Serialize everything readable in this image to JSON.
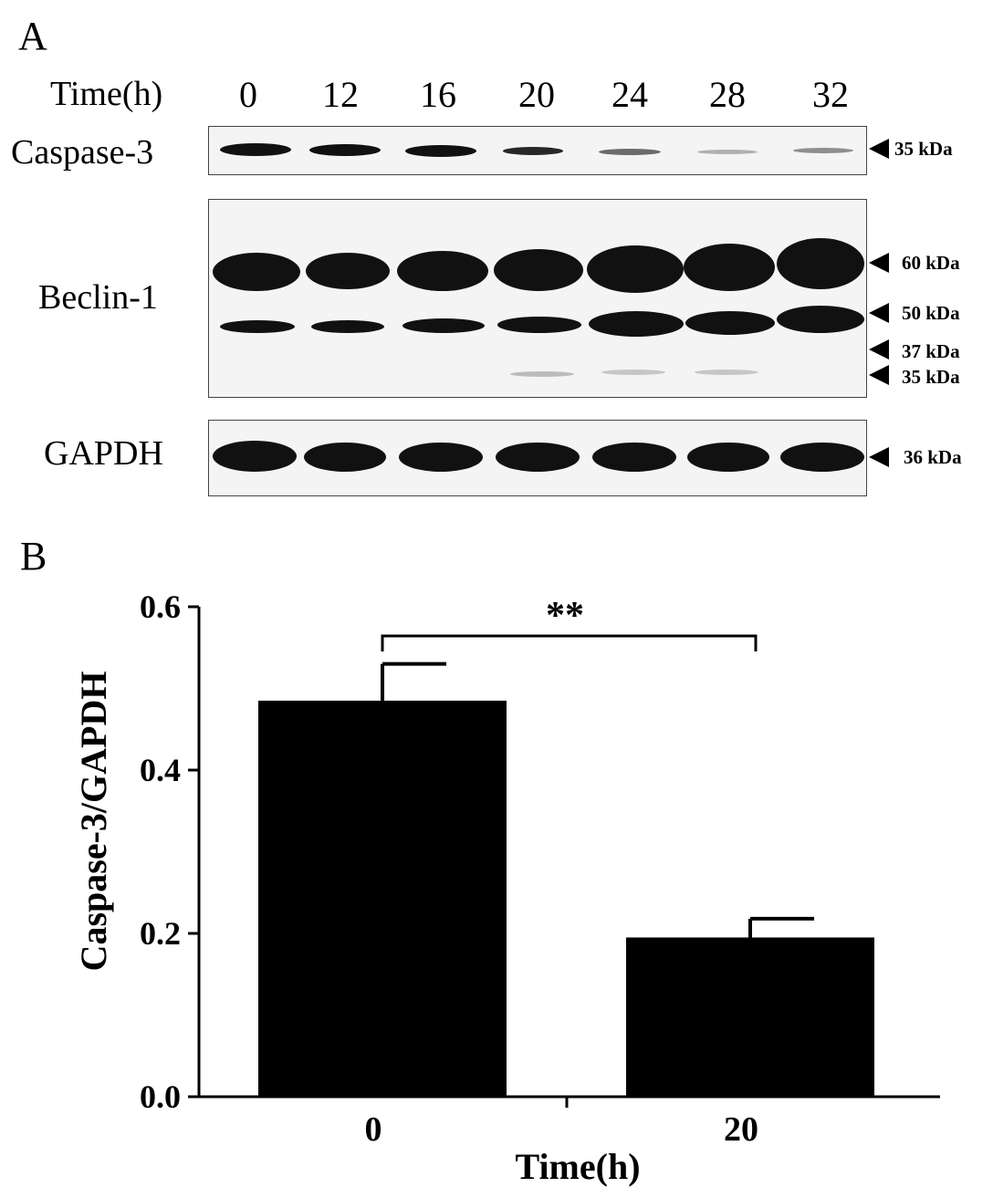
{
  "panel_a": {
    "letter": "A",
    "time_label": "Time(h)",
    "lanes": [
      "0",
      "12",
      "16",
      "20",
      "24",
      "28",
      "32"
    ],
    "blots": [
      {
        "name": "Caspase-3",
        "markers": [
          "35 kDa"
        ]
      },
      {
        "name": "Beclin-1",
        "markers": [
          "60 kDa",
          "50 kDa",
          "37 kDa",
          "35 kDa"
        ]
      },
      {
        "name": "GAPDH",
        "markers": [
          "36 kDa"
        ]
      }
    ]
  },
  "panel_b": {
    "letter": "B"
  },
  "chart_data": {
    "type": "bar",
    "categories": [
      "0",
      "20"
    ],
    "values": [
      0.485,
      0.195
    ],
    "error": [
      0.045,
      0.023
    ],
    "xlabel": "Time(h)",
    "ylabel": "Caspase-3/GAPDH",
    "ylim": [
      0,
      0.6
    ],
    "yticks": [
      "0.0",
      "0.2",
      "0.4",
      "0.6"
    ],
    "significance": "**",
    "bar_color": "#000000",
    "grid": false
  }
}
